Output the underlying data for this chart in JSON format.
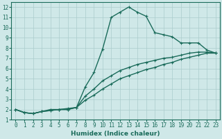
{
  "title": "",
  "xlabel": "Humidex (Indice chaleur)",
  "xlim": [
    -0.5,
    23.5
  ],
  "ylim": [
    1,
    12.5
  ],
  "xticks": [
    0,
    1,
    2,
    3,
    4,
    5,
    6,
    7,
    8,
    9,
    10,
    11,
    12,
    13,
    14,
    15,
    16,
    17,
    18,
    19,
    20,
    21,
    22,
    23
  ],
  "yticks": [
    1,
    2,
    3,
    4,
    5,
    6,
    7,
    8,
    9,
    10,
    11,
    12
  ],
  "bg_color": "#cfe8e8",
  "grid_color": "#aacccc",
  "line_color": "#1a6b5a",
  "lines": [
    {
      "x": [
        0,
        1,
        2,
        3,
        4,
        5,
        6,
        7,
        8,
        9,
        10,
        11,
        12,
        13,
        14,
        15,
        16,
        17,
        18,
        19,
        20,
        21,
        22,
        23
      ],
      "y": [
        2,
        1.7,
        1.6,
        1.8,
        2.0,
        2.0,
        2.1,
        2.2,
        4.2,
        5.6,
        7.9,
        11.0,
        11.5,
        12.0,
        11.5,
        11.1,
        9.5,
        9.3,
        9.1,
        8.5,
        8.5,
        8.5,
        7.8,
        7.5
      ]
    },
    {
      "x": [
        0,
        1,
        2,
        3,
        4,
        5,
        6,
        7,
        8,
        9,
        10,
        11,
        12,
        13,
        14,
        15,
        16,
        17,
        18,
        19,
        20,
        21,
        22,
        23
      ],
      "y": [
        2,
        1.7,
        1.6,
        1.8,
        1.9,
        2.0,
        2.0,
        2.2,
        3.3,
        4.0,
        4.8,
        5.3,
        5.8,
        6.1,
        6.4,
        6.6,
        6.8,
        7.0,
        7.1,
        7.3,
        7.5,
        7.6,
        7.6,
        7.5
      ]
    },
    {
      "x": [
        0,
        1,
        2,
        3,
        4,
        5,
        6,
        7,
        8,
        9,
        10,
        11,
        12,
        13,
        14,
        15,
        16,
        17,
        18,
        19,
        20,
        21,
        22,
        23
      ],
      "y": [
        2,
        1.7,
        1.6,
        1.8,
        1.9,
        2.0,
        2.0,
        2.2,
        2.9,
        3.4,
        4.0,
        4.5,
        5.0,
        5.3,
        5.6,
        5.9,
        6.1,
        6.4,
        6.6,
        6.9,
        7.1,
        7.3,
        7.5,
        7.5
      ]
    }
  ],
  "marker": "+",
  "markersize": 3.5,
  "linewidth": 1.0,
  "tick_fontsize": 5.5,
  "label_fontsize": 6.5
}
